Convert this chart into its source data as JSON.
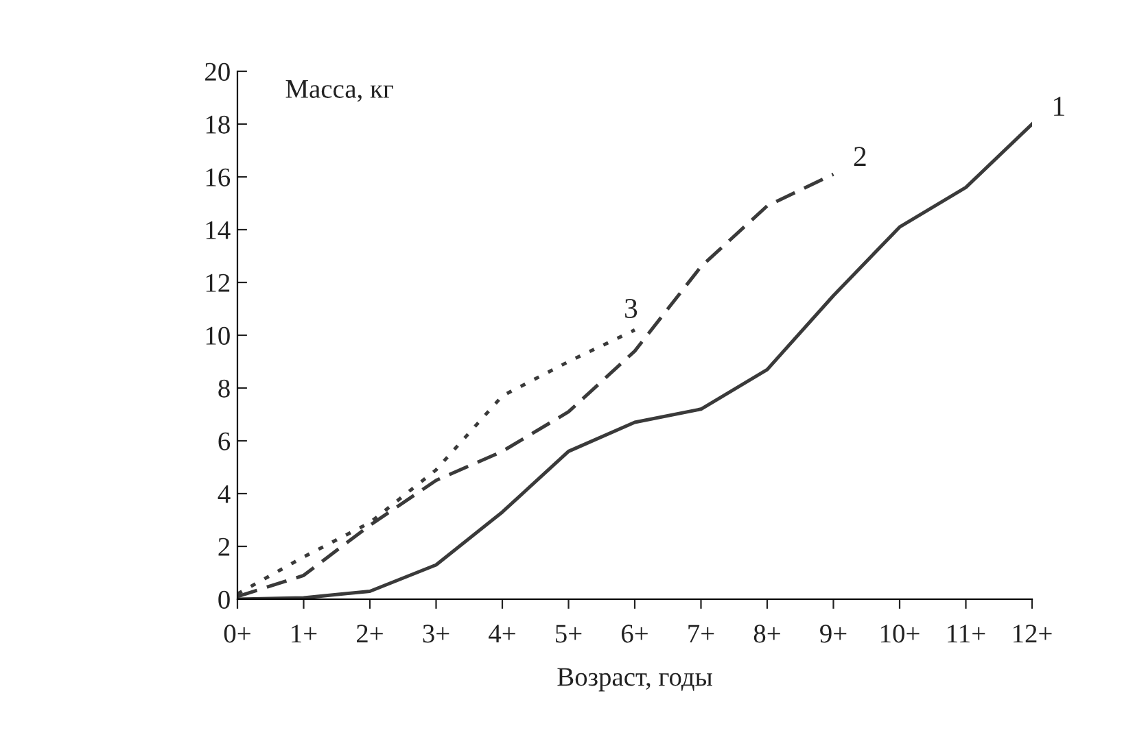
{
  "chart_data": {
    "type": "line",
    "ylabel": "Масса, кг",
    "xlabel": "Возраст, годы",
    "categories": [
      "0+",
      "1+",
      "2+",
      "3+",
      "4+",
      "5+",
      "6+",
      "7+",
      "8+",
      "9+",
      "10+",
      "11+",
      "12+"
    ],
    "series": [
      {
        "name": "1",
        "color": "#3a3a3a",
        "line_style": "solid",
        "values": [
          0,
          0.05,
          0.3,
          1.3,
          3.3,
          5.6,
          6.7,
          7.2,
          8.7,
          11.5,
          14.1,
          15.6,
          18
        ]
      },
      {
        "name": "2",
        "color": "#3a3a3a",
        "line_style": "dashed",
        "values": [
          0.1,
          0.9,
          2.8,
          4.5,
          5.6,
          7.1,
          9.4,
          12.6,
          14.9,
          16.1,
          null,
          null,
          null
        ]
      },
      {
        "name": "3",
        "color": "#3a3a3a",
        "line_style": "dotted",
        "values": [
          0.2,
          1.6,
          2.9,
          4.9,
          7.7,
          9.0,
          10.2,
          null,
          null,
          null,
          null,
          null,
          null
        ]
      }
    ],
    "ylim": [
      0,
      20
    ],
    "yticks": [
      0,
      2,
      4,
      6,
      8,
      10,
      12,
      14,
      16,
      18,
      20
    ],
    "grid": false,
    "legend": false,
    "marker": "none"
  }
}
